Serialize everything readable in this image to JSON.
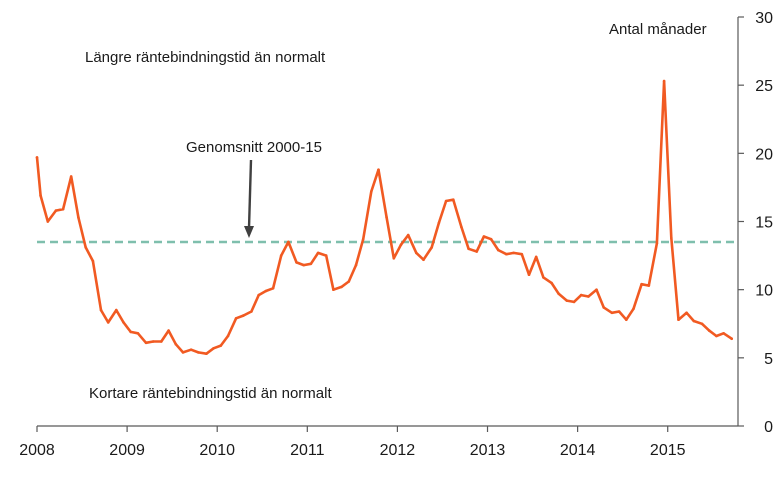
{
  "chart_data": {
    "type": "line",
    "title": "",
    "xlabel": "",
    "ylabel": "Antal månader",
    "y_axis_position": "right",
    "xlim": [
      2008.0,
      2015.78
    ],
    "ylim": [
      0,
      30
    ],
    "x_ticks": [
      "2008",
      "2009",
      "2010",
      "2011",
      "2012",
      "2013",
      "2014",
      "2015"
    ],
    "y_ticks": [
      "0",
      "5",
      "10",
      "15",
      "20",
      "25",
      "30"
    ],
    "grid": false,
    "legend": "none",
    "colors": {
      "series": "#f15a22",
      "average": "#7fbfad",
      "arrow": "#404040",
      "axis": "#595959"
    },
    "series": [
      {
        "values": [
          [
            2008.0,
            19.7
          ],
          [
            2008.04,
            16.9
          ],
          [
            2008.12,
            15.0
          ],
          [
            2008.21,
            15.8
          ],
          [
            2008.29,
            15.9
          ],
          [
            2008.38,
            18.3
          ],
          [
            2008.46,
            15.3
          ],
          [
            2008.54,
            13.1
          ],
          [
            2008.62,
            12.1
          ],
          [
            2008.71,
            8.5
          ],
          [
            2008.79,
            7.6
          ],
          [
            2008.88,
            8.5
          ],
          [
            2008.96,
            7.6
          ],
          [
            2009.04,
            6.9
          ],
          [
            2009.12,
            6.8
          ],
          [
            2009.21,
            6.1
          ],
          [
            2009.29,
            6.2
          ],
          [
            2009.38,
            6.2
          ],
          [
            2009.46,
            7.0
          ],
          [
            2009.54,
            6.0
          ],
          [
            2009.62,
            5.4
          ],
          [
            2009.71,
            5.6
          ],
          [
            2009.79,
            5.4
          ],
          [
            2009.88,
            5.3
          ],
          [
            2009.96,
            5.7
          ],
          [
            2010.04,
            5.9
          ],
          [
            2010.12,
            6.6
          ],
          [
            2010.21,
            7.9
          ],
          [
            2010.29,
            8.1
          ],
          [
            2010.38,
            8.4
          ],
          [
            2010.46,
            9.6
          ],
          [
            2010.54,
            9.9
          ],
          [
            2010.62,
            10.1
          ],
          [
            2010.71,
            12.5
          ],
          [
            2010.79,
            13.5
          ],
          [
            2010.88,
            12.0
          ],
          [
            2010.96,
            11.8
          ],
          [
            2011.04,
            11.9
          ],
          [
            2011.12,
            12.7
          ],
          [
            2011.21,
            12.5
          ],
          [
            2011.29,
            10.0
          ],
          [
            2011.38,
            10.2
          ],
          [
            2011.46,
            10.6
          ],
          [
            2011.54,
            11.8
          ],
          [
            2011.62,
            13.7
          ],
          [
            2011.71,
            17.2
          ],
          [
            2011.79,
            18.8
          ],
          [
            2011.88,
            15.3
          ],
          [
            2011.96,
            12.3
          ],
          [
            2012.04,
            13.3
          ],
          [
            2012.12,
            14.0
          ],
          [
            2012.21,
            12.7
          ],
          [
            2012.29,
            12.2
          ],
          [
            2012.38,
            13.1
          ],
          [
            2012.46,
            14.9
          ],
          [
            2012.54,
            16.5
          ],
          [
            2012.62,
            16.6
          ],
          [
            2012.71,
            14.6
          ],
          [
            2012.79,
            13.0
          ],
          [
            2012.88,
            12.8
          ],
          [
            2012.96,
            13.9
          ],
          [
            2013.04,
            13.7
          ],
          [
            2013.12,
            12.9
          ],
          [
            2013.21,
            12.6
          ],
          [
            2013.29,
            12.7
          ],
          [
            2013.38,
            12.6
          ],
          [
            2013.46,
            11.1
          ],
          [
            2013.54,
            12.4
          ],
          [
            2013.62,
            10.9
          ],
          [
            2013.71,
            10.5
          ],
          [
            2013.79,
            9.7
          ],
          [
            2013.88,
            9.2
          ],
          [
            2013.96,
            9.1
          ],
          [
            2014.04,
            9.6
          ],
          [
            2014.12,
            9.5
          ],
          [
            2014.21,
            10.0
          ],
          [
            2014.29,
            8.7
          ],
          [
            2014.38,
            8.3
          ],
          [
            2014.46,
            8.4
          ],
          [
            2014.54,
            7.8
          ],
          [
            2014.62,
            8.6
          ],
          [
            2014.71,
            10.4
          ],
          [
            2014.79,
            10.3
          ],
          [
            2014.88,
            13.4
          ],
          [
            2014.96,
            25.3
          ],
          [
            2015.04,
            13.8
          ],
          [
            2015.12,
            7.8
          ],
          [
            2015.21,
            8.3
          ],
          [
            2015.29,
            7.7
          ],
          [
            2015.38,
            7.5
          ],
          [
            2015.46,
            7.0
          ],
          [
            2015.54,
            6.6
          ],
          [
            2015.62,
            6.8
          ],
          [
            2015.71,
            6.4
          ]
        ]
      }
    ],
    "average_line": {
      "label": "Genomsnitt 2000-15",
      "value": 13.5
    },
    "annotations": {
      "upper": "Längre räntebindningstid än normalt",
      "lower": "Kortare räntebindningstid än normalt"
    }
  }
}
